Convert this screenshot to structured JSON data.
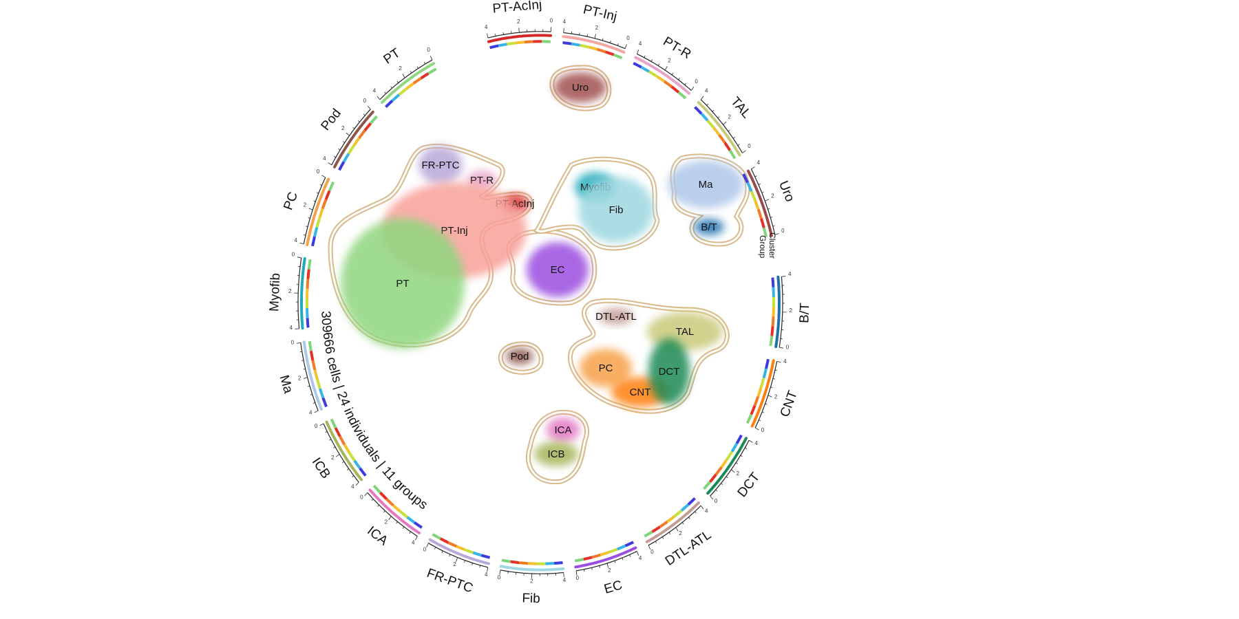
{
  "footer_text": "309666 cells | 24 individuals | 11 groups",
  "track_legend": {
    "line1": "Cluster",
    "line2": "Group"
  },
  "tick_labels": [
    "0",
    "2",
    "4"
  ],
  "segments": [
    {
      "label": "PT-AcInj",
      "color": "#d62728"
    },
    {
      "label": "PT-Inj",
      "color": "#f4a6a0"
    },
    {
      "label": "PT-R",
      "color": "#e8a3c8"
    },
    {
      "label": "TAL",
      "color": "#c9c97a"
    },
    {
      "label": "Uro",
      "color": "#9a4a4a"
    },
    {
      "label": "B/T",
      "color": "#1f6fb0"
    },
    {
      "label": "CNT",
      "color": "#ff7f0e"
    },
    {
      "label": "DCT",
      "color": "#1a8a55"
    },
    {
      "label": "DTL-ATL",
      "color": "#c49c94"
    },
    {
      "label": "EC",
      "color": "#9b4de0"
    },
    {
      "label": "Fib",
      "color": "#9fd8e0"
    },
    {
      "label": "FR-PTC",
      "color": "#b8a8d8"
    },
    {
      "label": "ICA",
      "color": "#e377c2"
    },
    {
      "label": "ICB",
      "color": "#a6b55a"
    },
    {
      "label": "Ma",
      "color": "#aec7e8"
    },
    {
      "label": "Myofib",
      "color": "#22aabb"
    },
    {
      "label": "PC",
      "color": "#f7a04a"
    },
    {
      "label": "Pod",
      "color": "#8c564b"
    },
    {
      "label": "PT",
      "color": "#8fd67f"
    }
  ],
  "clusters": [
    {
      "label": "Uro",
      "color": "#a05050"
    },
    {
      "label": "FR-PTC",
      "color": "#b8a8d8"
    },
    {
      "label": "PT-R",
      "color": "#e8a3c8"
    },
    {
      "label": "PT-AcInj",
      "color": "#d62728"
    },
    {
      "label": "PT-Inj",
      "color": "#f8a09a"
    },
    {
      "label": "PT",
      "color": "#8fd67f"
    },
    {
      "label": "Myofib",
      "color": "#22aabb"
    },
    {
      "label": "Fib",
      "color": "#9fd8e0"
    },
    {
      "label": "Ma",
      "color": "#aec7e8"
    },
    {
      "label": "B/T",
      "color": "#1f6fb0"
    },
    {
      "label": "EC",
      "color": "#9b4de0"
    },
    {
      "label": "DTL-ATL",
      "color": "#c49c94"
    },
    {
      "label": "TAL",
      "color": "#c9c97a"
    },
    {
      "label": "PC",
      "color": "#f7a04a"
    },
    {
      "label": "CNT",
      "color": "#ff7f0e"
    },
    {
      "label": "DCT",
      "color": "#1a8a55"
    },
    {
      "label": "Pod",
      "color": "#8c564b"
    },
    {
      "label": "ICA",
      "color": "#e377c2"
    },
    {
      "label": "ICB",
      "color": "#a6b55a"
    }
  ],
  "outline_color": "#d9b98a"
}
